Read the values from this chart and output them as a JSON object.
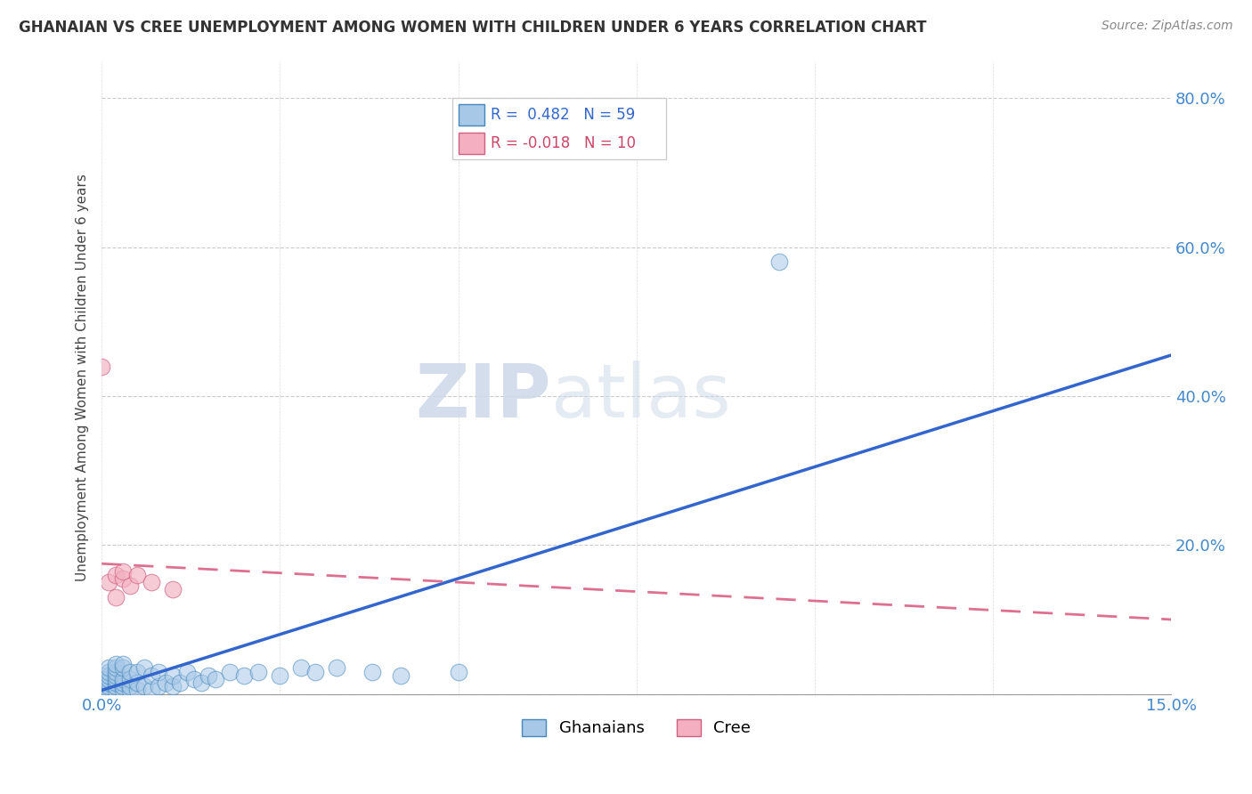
{
  "title": "GHANAIAN VS CREE UNEMPLOYMENT AMONG WOMEN WITH CHILDREN UNDER 6 YEARS CORRELATION CHART",
  "source": "Source: ZipAtlas.com",
  "ylabel": "Unemployment Among Women with Children Under 6 years",
  "xlim": [
    0.0,
    0.15
  ],
  "ylim": [
    0.0,
    0.85
  ],
  "r_ghanaian": 0.482,
  "n_ghanaian": 59,
  "r_cree": -0.018,
  "n_cree": 10,
  "color_ghanaian": "#a8c8e8",
  "color_cree": "#f4b0c0",
  "edge_ghanaian": "#4488bb",
  "edge_cree": "#d06080",
  "trend_ghanaian_color": "#3366cc",
  "trend_cree_color": "#dd7090",
  "watermark_color": "#ccd8e8",
  "ghanaian_x": [
    0.0,
    0.0,
    0.0,
    0.0,
    0.0,
    0.001,
    0.001,
    0.001,
    0.001,
    0.001,
    0.001,
    0.001,
    0.002,
    0.002,
    0.002,
    0.002,
    0.002,
    0.002,
    0.002,
    0.002,
    0.003,
    0.003,
    0.003,
    0.003,
    0.003,
    0.003,
    0.004,
    0.004,
    0.004,
    0.004,
    0.005,
    0.005,
    0.005,
    0.006,
    0.006,
    0.007,
    0.007,
    0.008,
    0.008,
    0.009,
    0.01,
    0.01,
    0.011,
    0.012,
    0.013,
    0.014,
    0.015,
    0.016,
    0.018,
    0.02,
    0.022,
    0.025,
    0.028,
    0.03,
    0.033,
    0.038,
    0.042,
    0.05,
    0.095
  ],
  "ghanaian_y": [
    0.005,
    0.01,
    0.015,
    0.02,
    0.025,
    0.005,
    0.01,
    0.015,
    0.02,
    0.025,
    0.03,
    0.035,
    0.005,
    0.01,
    0.015,
    0.02,
    0.025,
    0.03,
    0.035,
    0.04,
    0.005,
    0.01,
    0.015,
    0.02,
    0.035,
    0.04,
    0.005,
    0.01,
    0.02,
    0.03,
    0.005,
    0.015,
    0.03,
    0.01,
    0.035,
    0.005,
    0.025,
    0.01,
    0.03,
    0.015,
    0.01,
    0.025,
    0.015,
    0.03,
    0.02,
    0.015,
    0.025,
    0.02,
    0.03,
    0.025,
    0.03,
    0.025,
    0.035,
    0.03,
    0.035,
    0.03,
    0.025,
    0.03,
    0.58
  ],
  "cree_x": [
    0.0,
    0.001,
    0.002,
    0.002,
    0.003,
    0.003,
    0.004,
    0.005,
    0.007,
    0.01
  ],
  "cree_y": [
    0.44,
    0.15,
    0.13,
    0.16,
    0.155,
    0.165,
    0.145,
    0.16,
    0.15,
    0.14
  ],
  "trend_g_x0": 0.0,
  "trend_g_y0": 0.005,
  "trend_g_x1": 0.15,
  "trend_g_y1": 0.455,
  "trend_c_x0": 0.0,
  "trend_c_y0": 0.175,
  "trend_c_x1": 0.15,
  "trend_c_y1": 0.1
}
